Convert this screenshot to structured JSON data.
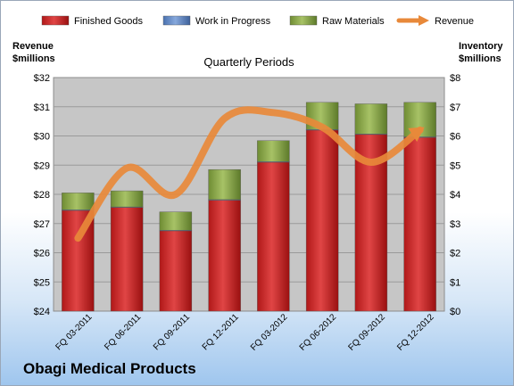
{
  "chart_data": {
    "type": "bar",
    "categories": [
      "FQ 03-2011",
      "FQ 06-2011",
      "FQ 09-2011",
      "FQ 12-2011",
      "FQ 03-2012",
      "FQ 06-2012",
      "FQ 09-2012",
      "FQ 12-2012"
    ],
    "series": [
      {
        "name": "Finished Goods",
        "axis": "right",
        "stacked": true,
        "color": "#cc2222",
        "values": [
          3.45,
          3.55,
          2.75,
          3.8,
          5.1,
          6.2,
          6.05,
          5.95
        ]
      },
      {
        "name": "Work in Progress",
        "axis": "right",
        "stacked": true,
        "color": "#5b84c4",
        "values": [
          0.02,
          0.02,
          0.02,
          0.02,
          0.02,
          0.02,
          0.02,
          0.02
        ]
      },
      {
        "name": "Raw Materials",
        "axis": "right",
        "stacked": true,
        "color": "#88a94a",
        "values": [
          0.58,
          0.55,
          0.63,
          1.03,
          0.72,
          0.93,
          1.03,
          1.18
        ]
      },
      {
        "name": "Revenue",
        "axis": "left",
        "type": "line",
        "color": "#e8893a",
        "values": [
          26.5,
          28.9,
          28.0,
          30.6,
          30.8,
          30.3,
          29.1,
          30.2
        ]
      }
    ],
    "title": "Quarterly Periods",
    "ylabel_left": [
      "Revenue",
      "$millions"
    ],
    "ylabel_right": [
      "Inventory",
      "$millions"
    ],
    "ylim_left": [
      24,
      32
    ],
    "ylim_right": [
      0,
      8
    ],
    "yticks_left": [
      "$24",
      "$25",
      "$26",
      "$27",
      "$28",
      "$29",
      "$30",
      "$31",
      "$32"
    ],
    "yticks_right": [
      "$0",
      "$1",
      "$2",
      "$3",
      "$4",
      "$5",
      "$6",
      "$7",
      "$8"
    ],
    "grid": true,
    "legend": "top"
  },
  "company": "Obagi Medical Products",
  "colors": {
    "plot_bg": "#c6c6c6",
    "grid": "#9a9a9a"
  }
}
